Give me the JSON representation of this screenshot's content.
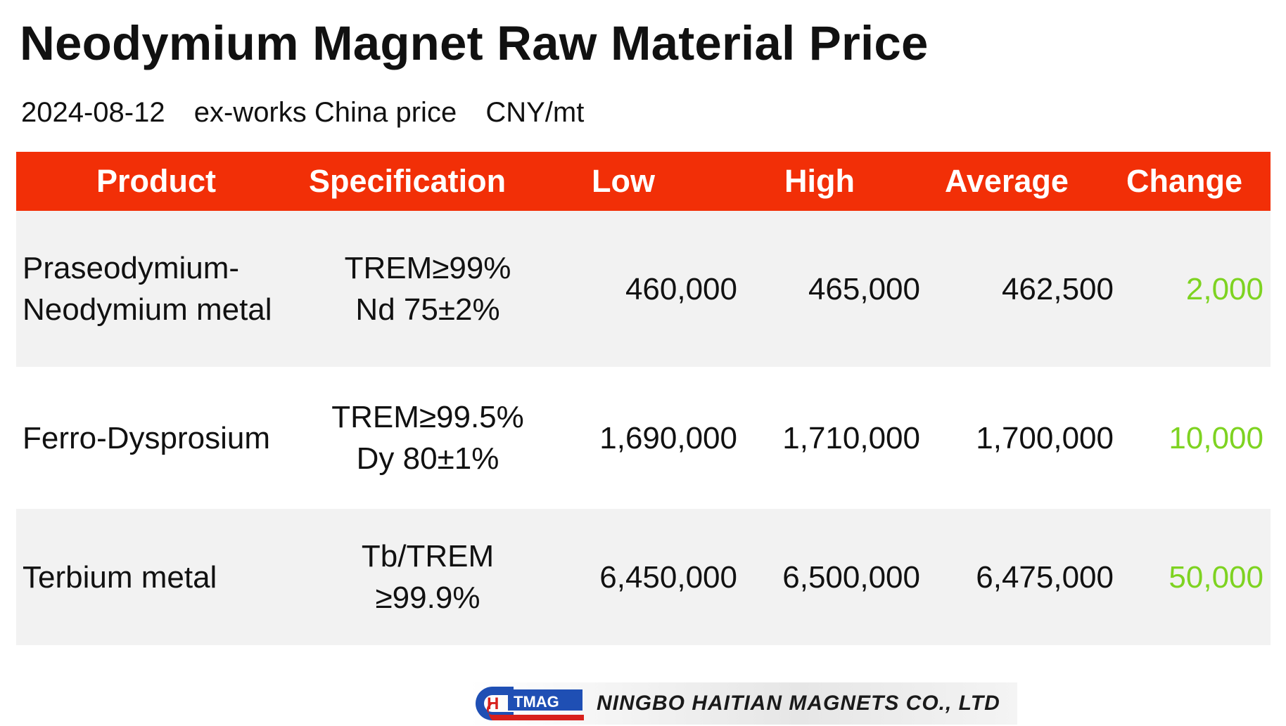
{
  "title": "Neodymium Magnet Raw Material Price",
  "subtitle": {
    "date": "2024-08-12",
    "basis": "ex-works China price",
    "unit": "CNY/mt"
  },
  "colors": {
    "header_bg": "#f22f07",
    "change_text": "#7ed321",
    "row_shade": "#f2f2f2"
  },
  "table": {
    "headers": [
      "Product",
      "Specification",
      "Low",
      "High",
      "Average",
      "Change"
    ],
    "rows": [
      {
        "product": [
          "Praseodymium-",
          "Neodymium metal"
        ],
        "spec": [
          "TREM≥99%",
          "Nd 75±2%"
        ],
        "low": "460,000",
        "high": "465,000",
        "average": "462,500",
        "change": "2,000"
      },
      {
        "product": [
          "Ferro-Dysprosium"
        ],
        "spec": [
          "TREM≥99.5%",
          "Dy 80±1%"
        ],
        "low": "1,690,000",
        "high": "1,710,000",
        "average": "1,700,000",
        "change": "10,000"
      },
      {
        "product": [
          "Terbium metal"
        ],
        "spec": [
          "Tb/TREM",
          "≥99.9%"
        ],
        "low": "6,450,000",
        "high": "6,500,000",
        "average": "6,475,000",
        "change": "50,000"
      }
    ]
  },
  "footer": {
    "logo_letters": "HTMAG",
    "company": "NINGBO HAITIAN MAGNETS CO., LTD"
  }
}
